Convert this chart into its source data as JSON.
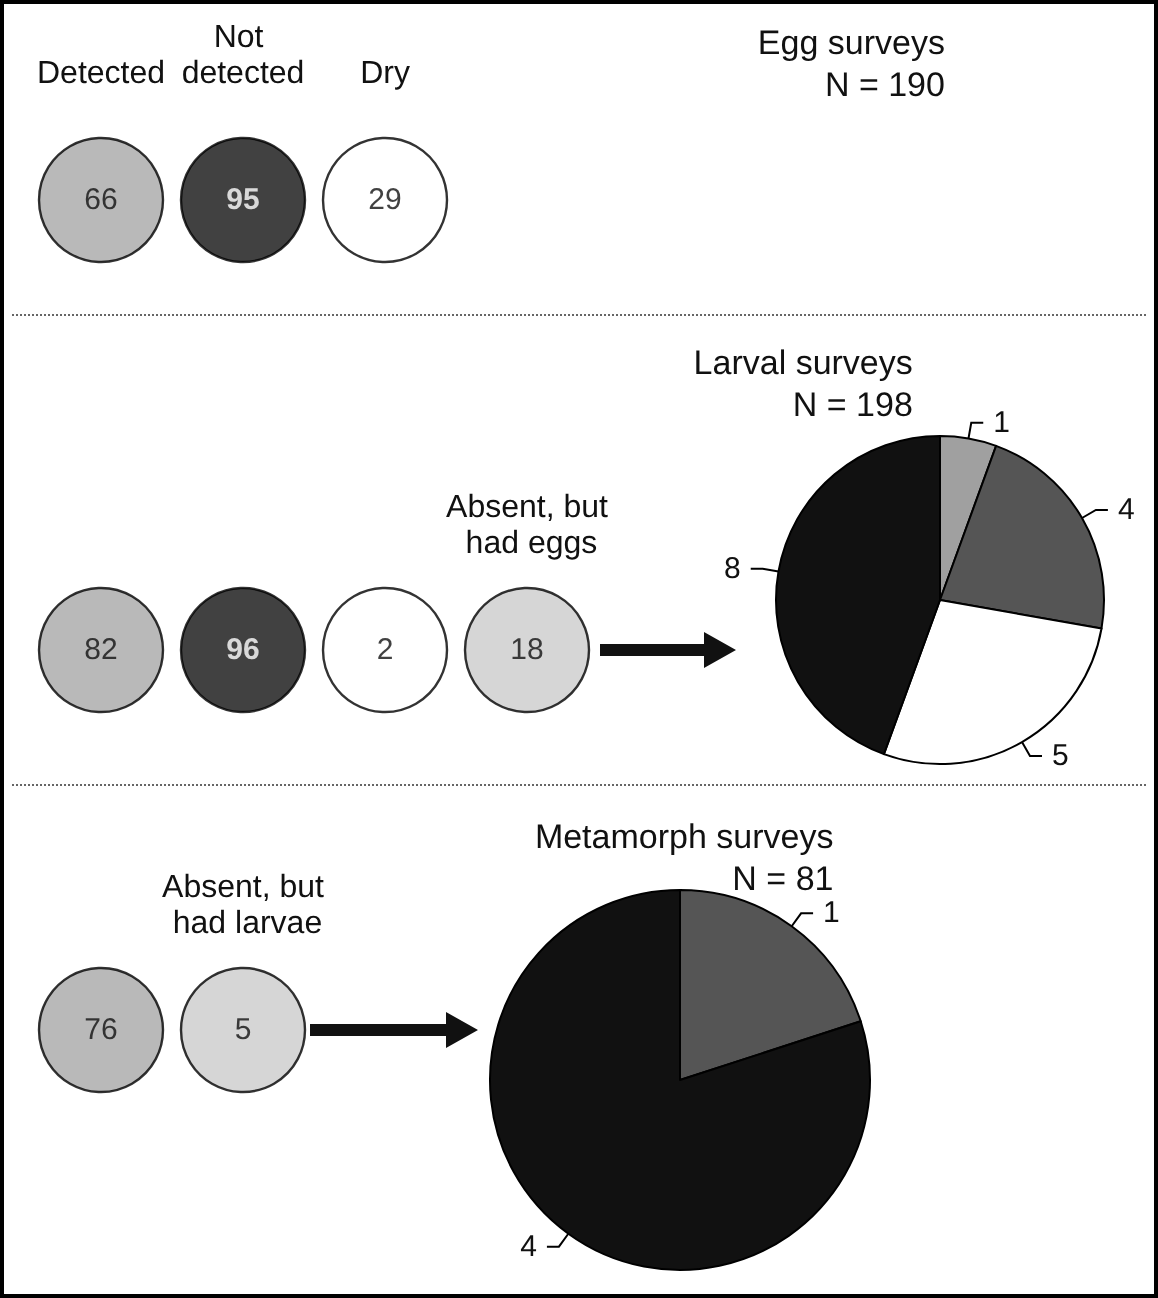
{
  "chart_data": [
    {
      "type": "other",
      "title": "Egg surveys",
      "subtitle": "N = 190",
      "categories": [
        "Detected",
        "Not detected",
        "Dry"
      ],
      "values": [
        66,
        95,
        29
      ],
      "colors": [
        "#a8a8a8",
        "#111111",
        "#ffffff"
      ],
      "data_labels": true
    },
    {
      "type": "other",
      "categories": [
        null,
        null,
        null,
        "Absent, but had eggs"
      ],
      "values": [
        82,
        96,
        2,
        18
      ],
      "colors": [
        "#a8a8a8",
        "#111111",
        "#ffffff",
        "#cccccc"
      ],
      "data_labels": true
    },
    {
      "type": "pie",
      "title": "Larval surveys",
      "subtitle": "N = 198",
      "categories": [
        null,
        null,
        null,
        null
      ],
      "values": [
        1,
        4,
        5,
        8
      ],
      "colors": [
        "#a0a0a0",
        "#555555",
        "#ffffff",
        "#111111"
      ],
      "data_labels": true
    },
    {
      "type": "other",
      "categories": [
        null,
        "Absent, but had larvae"
      ],
      "values": [
        76,
        5
      ],
      "colors": [
        "#a8a8a8",
        "#cccccc"
      ],
      "data_labels": true
    },
    {
      "type": "pie",
      "title": "Metamorph surveys",
      "subtitle": "N = 81",
      "categories": [
        null,
        null
      ],
      "values": [
        1,
        4
      ],
      "colors": [
        "#555555",
        "#111111"
      ],
      "data_labels": true
    }
  ]
}
